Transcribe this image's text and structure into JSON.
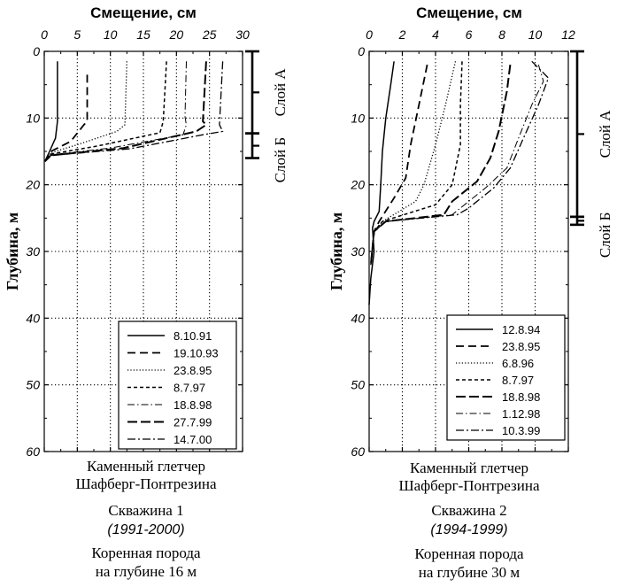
{
  "chart_data": [
    {
      "type": "line",
      "title": "Смещение, см",
      "xlabel": "Смещение, см",
      "ylabel": "Глубина, м",
      "xlim": [
        0,
        30
      ],
      "ylim": [
        0,
        60
      ],
      "x_ticks": [
        "0",
        "5",
        "10",
        "15",
        "20",
        "25",
        "30"
      ],
      "y_ticks": [
        "0",
        "10",
        "20",
        "30",
        "40",
        "50",
        "60"
      ],
      "grid": true,
      "legend_position": "bottom-right",
      "series": [
        {
          "name": "8.10.91",
          "style": "solid",
          "points": [
            [
              2.0,
              1.5
            ],
            [
              2.0,
              10.5
            ],
            [
              1.7,
              13.0
            ],
            [
              0.8,
              15.0
            ],
            [
              0.1,
              16.5
            ]
          ]
        },
        {
          "name": "19.10.93",
          "style": "dash",
          "points": [
            [
              6.5,
              3.5
            ],
            [
              6.5,
              10.5
            ],
            [
              6.0,
              11.0
            ],
            [
              4.0,
              13.5
            ],
            [
              1.0,
              15.0
            ],
            [
              0.1,
              16.5
            ]
          ]
        },
        {
          "name": "23.8.95",
          "style": "dot",
          "points": [
            [
              12.5,
              1.5
            ],
            [
              12.2,
              11.0
            ],
            [
              11.0,
              12.0
            ],
            [
              5.0,
              14.0
            ],
            [
              1.0,
              15.2
            ],
            [
              0.1,
              16.5
            ]
          ]
        },
        {
          "name": "8.7.97",
          "style": "shortdash",
          "points": [
            [
              18.5,
              1.5
            ],
            [
              18.0,
              10.5
            ],
            [
              17.5,
              12.2
            ],
            [
              8.0,
              14.2
            ],
            [
              1.0,
              15.4
            ],
            [
              0.1,
              16.5
            ]
          ]
        },
        {
          "name": "18.8.98",
          "style": "dashdot-light",
          "points": [
            [
              21.5,
              1.5
            ],
            [
              21.3,
              9.8
            ],
            [
              21.5,
              11.0
            ],
            [
              21.0,
              12.5
            ],
            [
              10.0,
              14.5
            ],
            [
              1.0,
              15.5
            ],
            [
              0.1,
              16.5
            ]
          ]
        },
        {
          "name": "27.7.99",
          "style": "longdash",
          "points": [
            [
              24.5,
              1.5
            ],
            [
              24.0,
              10.5
            ],
            [
              24.5,
              11.0
            ],
            [
              23.0,
              12.0
            ],
            [
              12.0,
              14.5
            ],
            [
              1.0,
              15.6
            ],
            [
              0.1,
              16.5
            ]
          ]
        },
        {
          "name": "14.7.00",
          "style": "dashdot",
          "points": [
            [
              27.0,
              1.5
            ],
            [
              26.5,
              11.0
            ],
            [
              27.0,
              12.0
            ],
            [
              24.0,
              12.5
            ],
            [
              13.0,
              14.6
            ],
            [
              1.0,
              15.6
            ],
            [
              0.1,
              16.5
            ]
          ]
        }
      ],
      "layers": [
        {
          "label": "Слой А",
          "from": 0,
          "to": 12.3
        },
        {
          "label": "Слой Б",
          "from": 12.3,
          "to": 16
        }
      ],
      "caption": [
        "Каменный глетчер",
        "Шафберг-Понтрезина",
        "Скважина 1",
        "(1991-2000)",
        "Коренная порода",
        "на глубине 16 м"
      ]
    },
    {
      "type": "line",
      "title": "Смещение, см",
      "xlabel": "Смещение, см",
      "ylabel": "Глубина, м",
      "xlim": [
        0,
        12
      ],
      "ylim": [
        0,
        60
      ],
      "x_ticks": [
        "0",
        "2",
        "4",
        "6",
        "8",
        "10",
        "12"
      ],
      "y_ticks": [
        "0",
        "10",
        "20",
        "30",
        "40",
        "50",
        "60"
      ],
      "grid": true,
      "legend_position": "bottom-right",
      "series": [
        {
          "name": "12.8.94",
          "style": "solid",
          "points": [
            [
              1.5,
              1.5
            ],
            [
              1.3,
              5.0
            ],
            [
              1.0,
              10.0
            ],
            [
              0.8,
              15.0
            ],
            [
              0.7,
              20.0
            ],
            [
              0.6,
              24.0
            ],
            [
              0.3,
              25.5
            ],
            [
              0.2,
              26.5
            ],
            [
              0.3,
              30.0
            ],
            [
              0.1,
              34.0
            ],
            [
              0.0,
              38.0
            ]
          ]
        },
        {
          "name": "23.8.95",
          "style": "dash",
          "points": [
            [
              3.5,
              2.0
            ],
            [
              3.0,
              8.0
            ],
            [
              2.5,
              14.0
            ],
            [
              2.2,
              19.0
            ],
            [
              1.5,
              22.0
            ],
            [
              0.6,
              25.5
            ],
            [
              0.3,
              27.0
            ],
            [
              0.1,
              32.0
            ]
          ]
        },
        {
          "name": "6.8.96",
          "style": "dot",
          "points": [
            [
              5.2,
              1.5
            ],
            [
              4.6,
              8.0
            ],
            [
              4.0,
              14.0
            ],
            [
              3.3,
              20.0
            ],
            [
              2.8,
              22.5
            ],
            [
              0.8,
              25.5
            ],
            [
              0.3,
              27.0
            ],
            [
              0.1,
              32.0
            ]
          ]
        },
        {
          "name": "8.7.97",
          "style": "shortdash",
          "points": [
            [
              5.6,
              1.5
            ],
            [
              5.5,
              8.0
            ],
            [
              5.5,
              14.0
            ],
            [
              5.0,
              20.0
            ],
            [
              4.0,
              23.0
            ],
            [
              0.8,
              25.5
            ],
            [
              0.3,
              27.0
            ],
            [
              0.1,
              32.0
            ]
          ]
        },
        {
          "name": "18.8.98",
          "style": "longdash",
          "points": [
            [
              8.5,
              2.0
            ],
            [
              8.3,
              6.0
            ],
            [
              7.8,
              12.0
            ],
            [
              7.3,
              16.0
            ],
            [
              6.5,
              19.5
            ],
            [
              5.0,
              22.5
            ],
            [
              4.5,
              24.5
            ],
            [
              1.0,
              25.5
            ],
            [
              0.3,
              27.0
            ],
            [
              0.1,
              32.0
            ]
          ]
        },
        {
          "name": "1.12.98",
          "style": "dashdot-light",
          "points": [
            [
              10.2,
              2.0
            ],
            [
              10.5,
              4.5
            ],
            [
              9.8,
              8.0
            ],
            [
              9.0,
              13.0
            ],
            [
              8.3,
              17.5
            ],
            [
              7.0,
              20.5
            ],
            [
              5.5,
              23.5
            ],
            [
              5.0,
              24.5
            ],
            [
              1.0,
              25.5
            ],
            [
              0.3,
              27.0
            ],
            [
              0.1,
              32.0
            ]
          ]
        },
        {
          "name": "10.3.99",
          "style": "dashdot",
          "points": [
            [
              9.8,
              1.5
            ],
            [
              10.8,
              4.0
            ],
            [
              10.2,
              8.0
            ],
            [
              9.3,
              13.0
            ],
            [
              8.5,
              17.5
            ],
            [
              7.5,
              20.5
            ],
            [
              6.0,
              23.5
            ],
            [
              5.3,
              24.5
            ],
            [
              1.0,
              25.5
            ],
            [
              0.3,
              27.0
            ],
            [
              0.1,
              32.0
            ]
          ]
        }
      ],
      "layers": [
        {
          "label": "Слой А",
          "from": 0,
          "to": 24.8
        },
        {
          "label": "Слой Б",
          "from": 24.8,
          "to": 26
        }
      ],
      "caption": [
        "Каменный глетчер",
        "Шафберг-Понтрезина",
        "Скважина 2",
        "(1994-1999)",
        "Коренная порода",
        "на глубине  30 м"
      ]
    }
  ]
}
